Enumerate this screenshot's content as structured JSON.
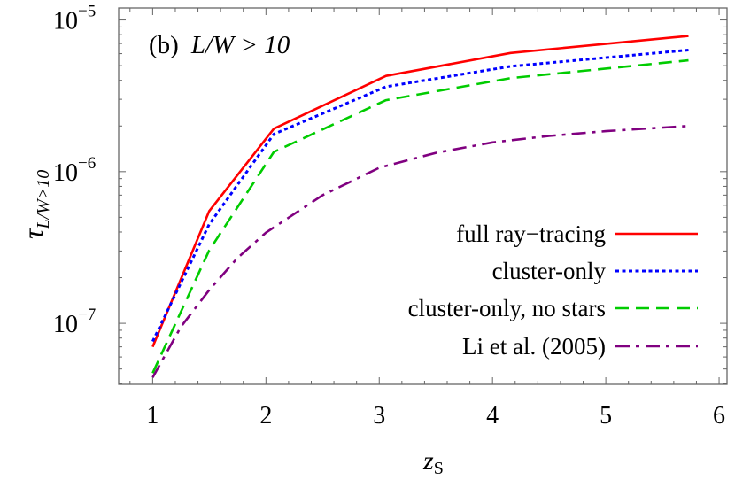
{
  "chart_data": {
    "type": "line",
    "panel_label": "(b)",
    "panel_condition": "L/W > 10",
    "xlabel": "z",
    "xlabel_subscript": "S",
    "ylabel": "τ",
    "ylabel_subscript": "L/W>10",
    "xlim": [
      0.7,
      6.07
    ],
    "ylim": [
      3.96e-08,
      1.2e-05
    ],
    "yscale": "log",
    "grid": false,
    "legend_position": "center-right",
    "x_ticks": [
      "1",
      "2",
      "3",
      "4",
      "5",
      "6"
    ],
    "y_ticks": [
      {
        "value": 1e-05,
        "base": "10",
        "exp": "−5"
      },
      {
        "value": 1e-06,
        "base": "10",
        "exp": "−6"
      },
      {
        "value": 1e-07,
        "base": "10",
        "exp": "−7"
      }
    ],
    "series": [
      {
        "name": "full ray−tracing",
        "color": "#ff0000",
        "style": "solid",
        "x": [
          1.0,
          1.5,
          2.07,
          3.06,
          4.16,
          5.73
        ],
        "y": [
          7e-08,
          5.5e-07,
          1.92e-06,
          4.28e-06,
          6.06e-06,
          7.85e-06
        ]
      },
      {
        "name": "cluster-only",
        "color": "#0000ff",
        "style": "dotted",
        "x": [
          1.0,
          1.5,
          2.07,
          3.06,
          4.16,
          5.73
        ],
        "y": [
          7.6e-08,
          4.5e-07,
          1.77e-06,
          3.63e-06,
          4.95e-06,
          6.34e-06
        ]
      },
      {
        "name": "cluster-only, no stars",
        "color": "#00cc00",
        "style": "dashed",
        "x": [
          1.0,
          1.5,
          2.07,
          3.06,
          4.16,
          5.73
        ],
        "y": [
          4.7e-08,
          3.03e-07,
          1.35e-06,
          2.96e-06,
          4.14e-06,
          5.42e-06
        ]
      },
      {
        "name": "Li et al. (2005)",
        "color": "#800080",
        "style": "dashdot",
        "x": [
          1.0,
          1.25,
          1.5,
          1.75,
          2.0,
          2.5,
          3.0,
          3.5,
          4.0,
          4.5,
          5.0,
          5.72
        ],
        "y": [
          4.4e-08,
          9.5e-08,
          1.66e-07,
          2.7e-07,
          3.96e-07,
          7e-07,
          1.06e-06,
          1.33e-06,
          1.56e-06,
          1.72e-06,
          1.85e-06,
          2e-06
        ]
      }
    ]
  }
}
